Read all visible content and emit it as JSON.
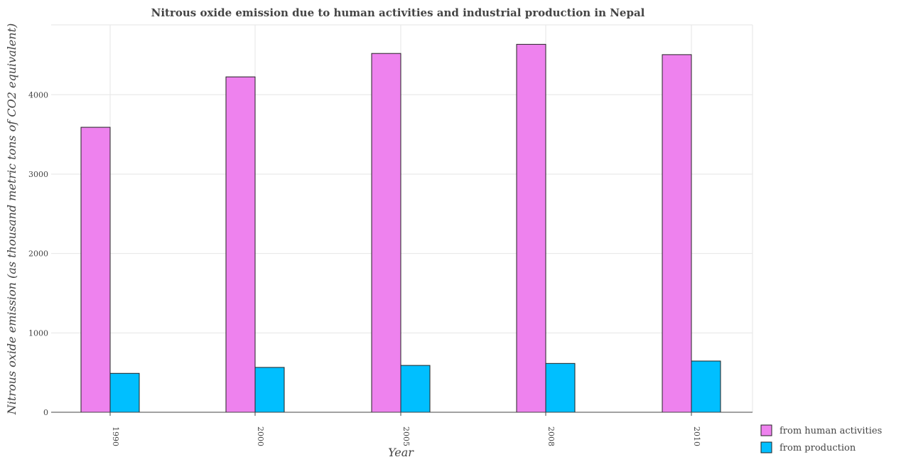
{
  "chart_data": {
    "type": "bar",
    "title": "Nitrous oxide emission due to human activities and industrial production in Nepal",
    "xlabel": "Year",
    "ylabel": "Nitrous oxide emission (as thousand metric tons of CO2 equivalent)",
    "categories": [
      "1990",
      "2000",
      "2005",
      "2008",
      "2010"
    ],
    "series": [
      {
        "name": "from human activities",
        "color": "#EE82EE",
        "values": [
          3590,
          4225,
          4520,
          4635,
          4505
        ]
      },
      {
        "name": "from production",
        "color": "#00BFFF",
        "values": [
          490,
          565,
          590,
          615,
          645
        ]
      }
    ],
    "ylim": [
      0,
      4880
    ],
    "yticks": [
      0,
      1000,
      2000,
      3000,
      4000
    ],
    "grid": true,
    "legend_position": "bottom-right"
  }
}
